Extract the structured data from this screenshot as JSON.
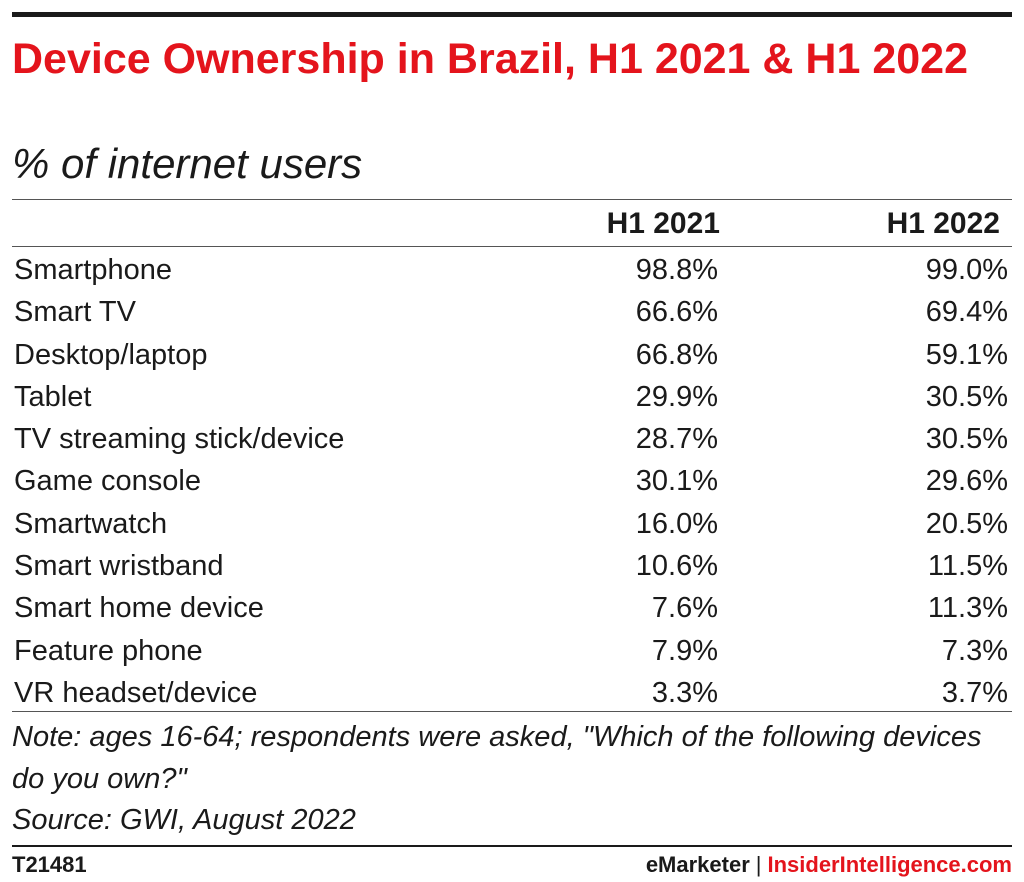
{
  "chart_data": {
    "type": "table",
    "title": "Device Ownership in Brazil, H1 2021 & H1 2022",
    "subtitle": "% of internet users",
    "columns": [
      "H1 2021",
      "H1 2022"
    ],
    "rows": [
      {
        "label": "Smartphone",
        "values": [
          "98.8%",
          "99.0%"
        ]
      },
      {
        "label": "Smart TV",
        "values": [
          "66.6%",
          "69.4%"
        ]
      },
      {
        "label": "Desktop/laptop",
        "values": [
          "66.8%",
          "59.1%"
        ]
      },
      {
        "label": "Tablet",
        "values": [
          "29.9%",
          "30.5%"
        ]
      },
      {
        "label": "TV streaming stick/device",
        "values": [
          "28.7%",
          "30.5%"
        ]
      },
      {
        "label": "Game console",
        "values": [
          "30.1%",
          "29.6%"
        ]
      },
      {
        "label": "Smartwatch",
        "values": [
          "16.0%",
          "20.5%"
        ]
      },
      {
        "label": "Smart wristband",
        "values": [
          "10.6%",
          "11.5%"
        ]
      },
      {
        "label": "Smart home device",
        "values": [
          "7.6%",
          "11.3%"
        ]
      },
      {
        "label": "Feature phone",
        "values": [
          "7.9%",
          "7.3%"
        ]
      },
      {
        "label": "VR headset/device",
        "values": [
          "3.3%",
          "3.7%"
        ]
      }
    ],
    "note": "Note: ages 16-64; respondents were asked, \"Which of the following devices do you own?\"",
    "source": "Source: GWI, August 2022"
  },
  "footer": {
    "code": "T21481",
    "brand_left": "eMarketer",
    "separator": "|",
    "brand_right": "InsiderIntelligence.com"
  },
  "colors": {
    "title": "#e4141c",
    "text": "#1a1a1a"
  }
}
